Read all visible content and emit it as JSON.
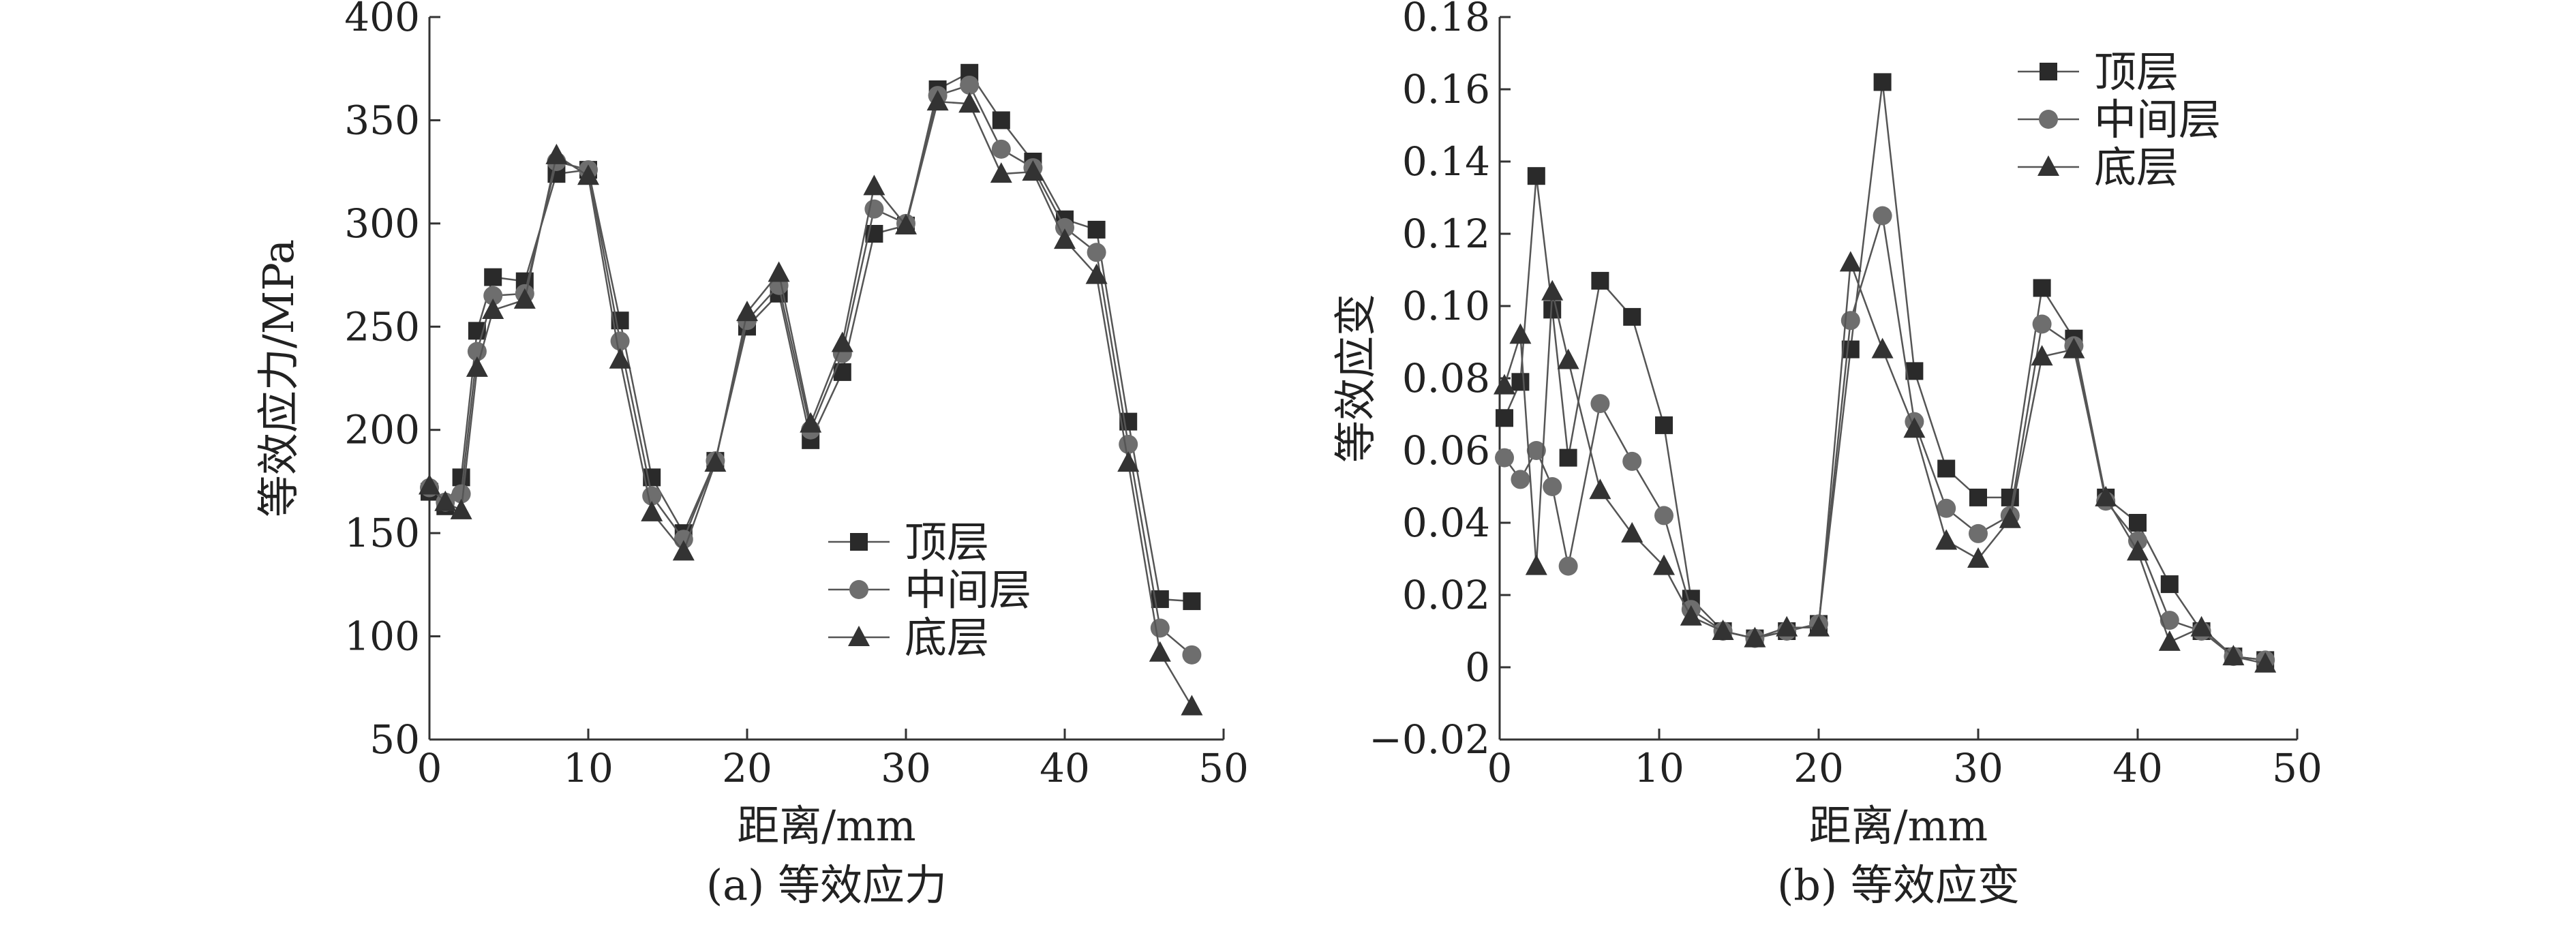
{
  "charts": [
    {
      "caption": "(a) 等效应力",
      "type": "line",
      "xlabel": "距离/mm",
      "ylabel": "等效应力/MPa",
      "xlim": [
        0,
        50
      ],
      "ylim": [
        50,
        400
      ],
      "xticks": [
        0,
        10,
        20,
        30,
        40,
        50
      ],
      "yticks": [
        50,
        100,
        150,
        200,
        250,
        300,
        350,
        400
      ],
      "legend": "bottom-right",
      "series": [
        {
          "name": "顶层",
          "marker": "square",
          "x": [
            0,
            1,
            2,
            3,
            4,
            6,
            8,
            10,
            12,
            14,
            16,
            18,
            20,
            22,
            24,
            26,
            28,
            30,
            32,
            34,
            36,
            38,
            40,
            42,
            44,
            46,
            48
          ],
          "y": [
            170,
            163,
            177,
            248,
            274,
            272,
            324,
            326,
            253,
            177,
            150,
            185,
            250,
            266,
            195,
            228,
            295,
            299,
            365,
            373,
            350,
            330,
            302,
            297,
            204,
            118,
            117
          ]
        },
        {
          "name": "中间层",
          "marker": "circle",
          "x": [
            0,
            1,
            2,
            3,
            4,
            6,
            8,
            10,
            12,
            14,
            16,
            18,
            20,
            22,
            24,
            26,
            28,
            30,
            32,
            34,
            36,
            38,
            40,
            42,
            44,
            46,
            48
          ],
          "y": [
            172,
            165,
            169,
            238,
            265,
            266,
            330,
            326,
            243,
            168,
            147,
            185,
            253,
            270,
            200,
            237,
            307,
            300,
            362,
            367,
            336,
            327,
            298,
            286,
            193,
            104,
            91
          ]
        },
        {
          "name": "底层",
          "marker": "triangle",
          "x": [
            0,
            1,
            2,
            3,
            4,
            6,
            8,
            10,
            12,
            14,
            16,
            18,
            20,
            22,
            24,
            26,
            28,
            30,
            32,
            34,
            36,
            38,
            40,
            42,
            44,
            46,
            48
          ],
          "y": [
            173,
            165,
            161,
            230,
            258,
            263,
            333,
            323,
            234,
            160,
            141,
            184,
            257,
            276,
            203,
            242,
            318,
            299,
            359,
            358,
            324,
            325,
            292,
            275,
            184,
            92,
            66
          ]
        }
      ]
    },
    {
      "caption": "(b) 等效应变",
      "type": "line",
      "xlabel": "距离/mm",
      "ylabel": "等效应变",
      "xlim": [
        0,
        50
      ],
      "ylim": [
        -0.02,
        0.18
      ],
      "xticks": [
        0,
        10,
        20,
        30,
        40,
        50
      ],
      "yticks": [
        -0.02,
        0,
        0.02,
        0.04,
        0.06,
        0.08,
        0.1,
        0.12,
        0.14,
        0.16,
        0.18
      ],
      "ytick_labels": [
        "−0.02",
        "0",
        "0.02",
        "0.04",
        "0.06",
        "0.08",
        "0.10",
        "0.12",
        "0.14",
        "0.16",
        "0.18"
      ],
      "legend": "top-right",
      "series": [
        {
          "name": "顶层",
          "marker": "square",
          "x": [
            0.3,
            1.3,
            2.3,
            3.3,
            4.3,
            6.3,
            8.3,
            10.3,
            12,
            14,
            16,
            18,
            20,
            22,
            24,
            26,
            28,
            30,
            32,
            34,
            36,
            38,
            40,
            42,
            44,
            46,
            48
          ],
          "y": [
            0.069,
            0.079,
            0.136,
            0.099,
            0.058,
            0.107,
            0.097,
            0.067,
            0.019,
            0.01,
            0.008,
            0.01,
            0.012,
            0.088,
            0.162,
            0.082,
            0.055,
            0.047,
            0.047,
            0.105,
            0.091,
            0.047,
            0.04,
            0.023,
            0.01,
            0.003,
            0.002
          ]
        },
        {
          "name": "中间层",
          "marker": "circle",
          "x": [
            0.3,
            1.3,
            2.3,
            3.3,
            4.3,
            6.3,
            8.3,
            10.3,
            12,
            14,
            16,
            18,
            20,
            22,
            24,
            26,
            28,
            30,
            32,
            34,
            36,
            38,
            40,
            42,
            44,
            46,
            48
          ],
          "y": [
            0.058,
            0.052,
            0.06,
            0.05,
            0.028,
            0.073,
            0.057,
            0.042,
            0.016,
            0.01,
            0.008,
            0.01,
            0.012,
            0.096,
            0.125,
            0.068,
            0.044,
            0.037,
            0.042,
            0.095,
            0.089,
            0.046,
            0.035,
            0.013,
            0.01,
            0.003,
            0.002
          ]
        },
        {
          "name": "底层",
          "marker": "triangle",
          "x": [
            0.3,
            1.3,
            2.3,
            3.3,
            4.3,
            6.3,
            8.3,
            10.3,
            12,
            14,
            16,
            18,
            20,
            22,
            24,
            26,
            28,
            30,
            32,
            34,
            36,
            38,
            40,
            42,
            44,
            46,
            48
          ],
          "y": [
            0.078,
            0.092,
            0.028,
            0.104,
            0.085,
            0.049,
            0.037,
            0.028,
            0.014,
            0.01,
            0.008,
            0.011,
            0.011,
            0.112,
            0.088,
            0.066,
            0.035,
            0.03,
            0.041,
            0.086,
            0.088,
            0.047,
            0.032,
            0.007,
            0.011,
            0.003,
            0.001
          ]
        }
      ]
    }
  ]
}
